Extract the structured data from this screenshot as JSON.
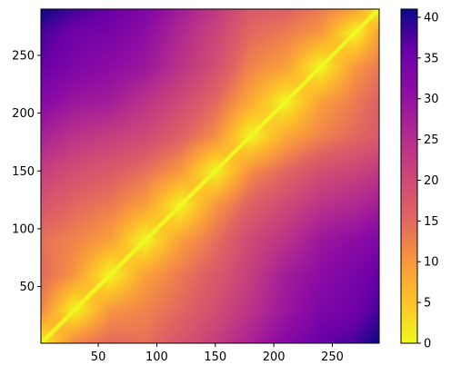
{
  "chart_data": {
    "type": "heatmap",
    "title": "",
    "xlabel": "",
    "ylabel": "",
    "x_range": [
      1,
      290
    ],
    "y_range": [
      1,
      290
    ],
    "x_ticks": [
      50,
      100,
      150,
      200,
      250
    ],
    "y_ticks": [
      50,
      100,
      150,
      200,
      250
    ],
    "colorbar": {
      "colormap": "plasma_r",
      "min": 0,
      "max": 41,
      "ticks": [
        0,
        5,
        10,
        15,
        20,
        25,
        30,
        35,
        40
      ]
    },
    "matrix_grid": {
      "rows_and_columns": [
        1,
        30,
        60,
        90,
        120,
        150,
        180,
        210,
        240,
        270,
        290
      ],
      "values": [
        [
          0,
          12,
          15,
          14,
          18,
          22,
          27,
          32,
          36,
          38,
          41
        ],
        [
          12,
          0,
          10,
          12,
          15,
          19,
          24,
          29,
          33,
          35,
          38
        ],
        [
          15,
          10,
          0,
          9,
          13,
          17,
          22,
          28,
          31,
          34,
          36
        ],
        [
          14,
          12,
          9,
          0,
          9,
          14,
          20,
          24,
          29,
          31,
          33
        ],
        [
          18,
          15,
          13,
          9,
          0,
          10,
          16,
          20,
          24,
          26,
          28
        ],
        [
          22,
          19,
          17,
          14,
          10,
          0,
          11,
          15,
          19,
          21,
          23
        ],
        [
          27,
          24,
          22,
          20,
          16,
          11,
          0,
          8,
          12,
          15,
          17
        ],
        [
          32,
          29,
          28,
          24,
          20,
          15,
          8,
          0,
          9,
          13,
          16
        ],
        [
          36,
          33,
          31,
          29,
          24,
          19,
          12,
          9,
          0,
          10,
          13
        ],
        [
          38,
          35,
          34,
          31,
          26,
          21,
          15,
          13,
          10,
          0,
          9
        ],
        [
          41,
          38,
          36,
          33,
          28,
          23,
          17,
          16,
          13,
          9,
          0
        ]
      ]
    }
  }
}
